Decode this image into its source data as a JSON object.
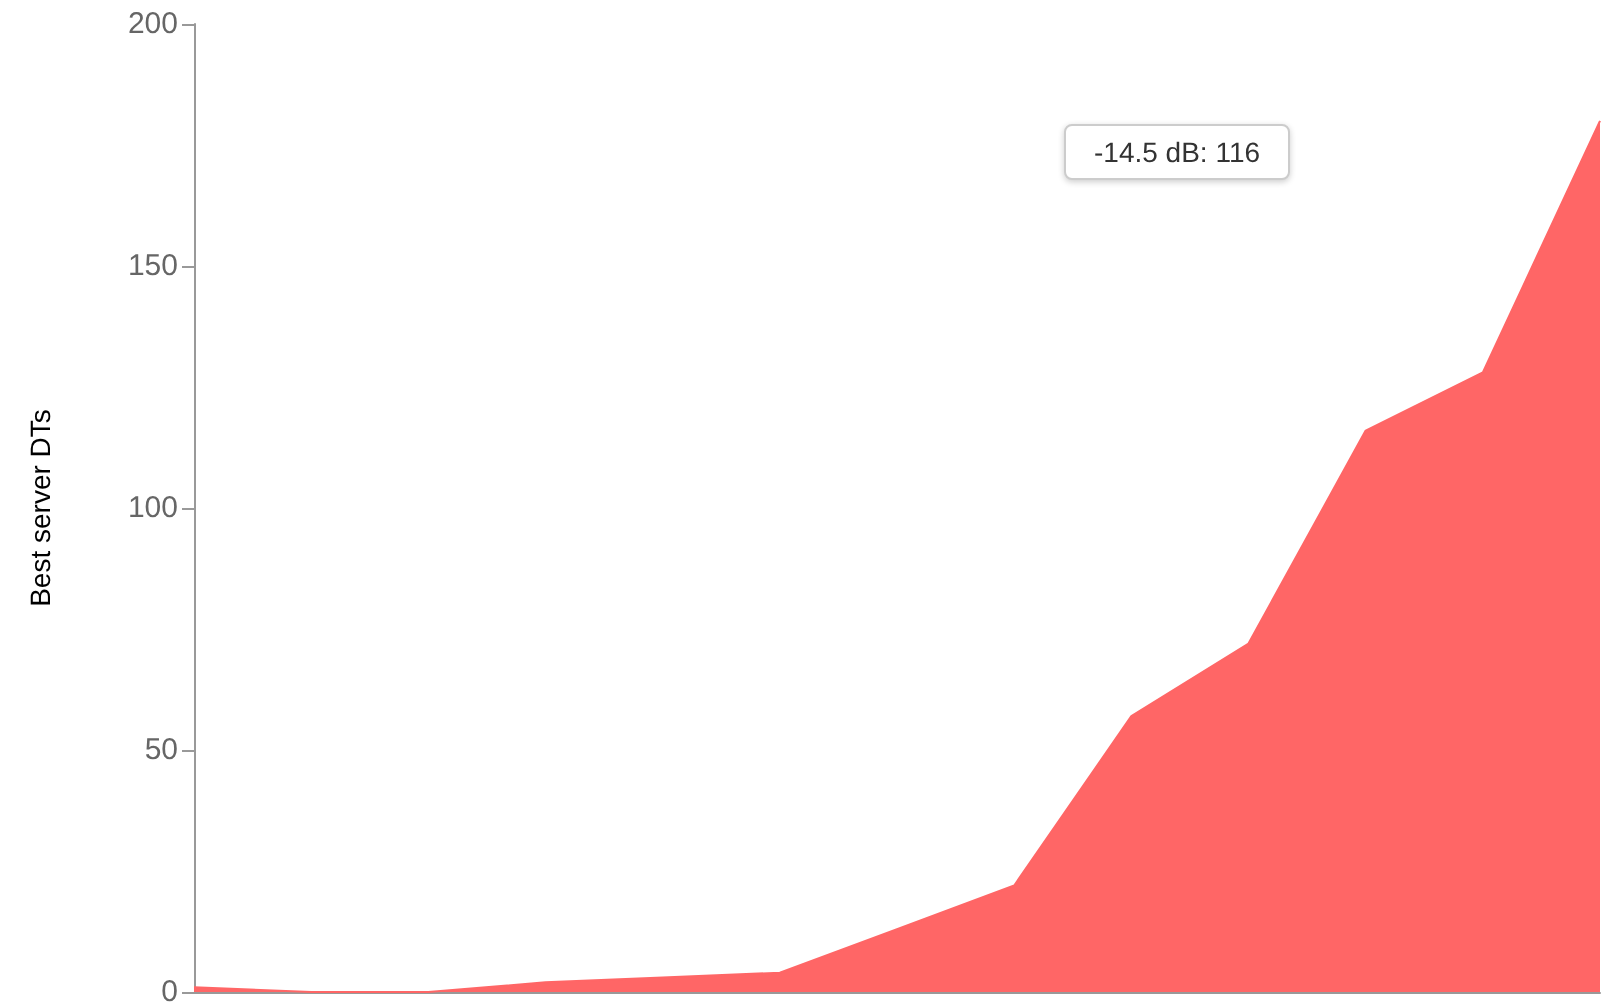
{
  "chart_data": {
    "type": "area",
    "ylabel": "Best server DTs",
    "categories": [
      null,
      null,
      null,
      null,
      null,
      null,
      null,
      null,
      null,
      null,
      null,
      null,
      null
    ],
    "series": [
      {
        "color": "#ff6666",
        "values": [
          1,
          0,
          0,
          2,
          3,
          4,
          13,
          22,
          57,
          72,
          116,
          128,
          180
        ]
      }
    ],
    "ylim": [
      0,
      200
    ],
    "yticks": [
      0,
      50,
      100,
      150,
      200
    ],
    "grid": false,
    "marker": "none",
    "annotations": [
      "-14.5 dB: 116"
    ]
  }
}
